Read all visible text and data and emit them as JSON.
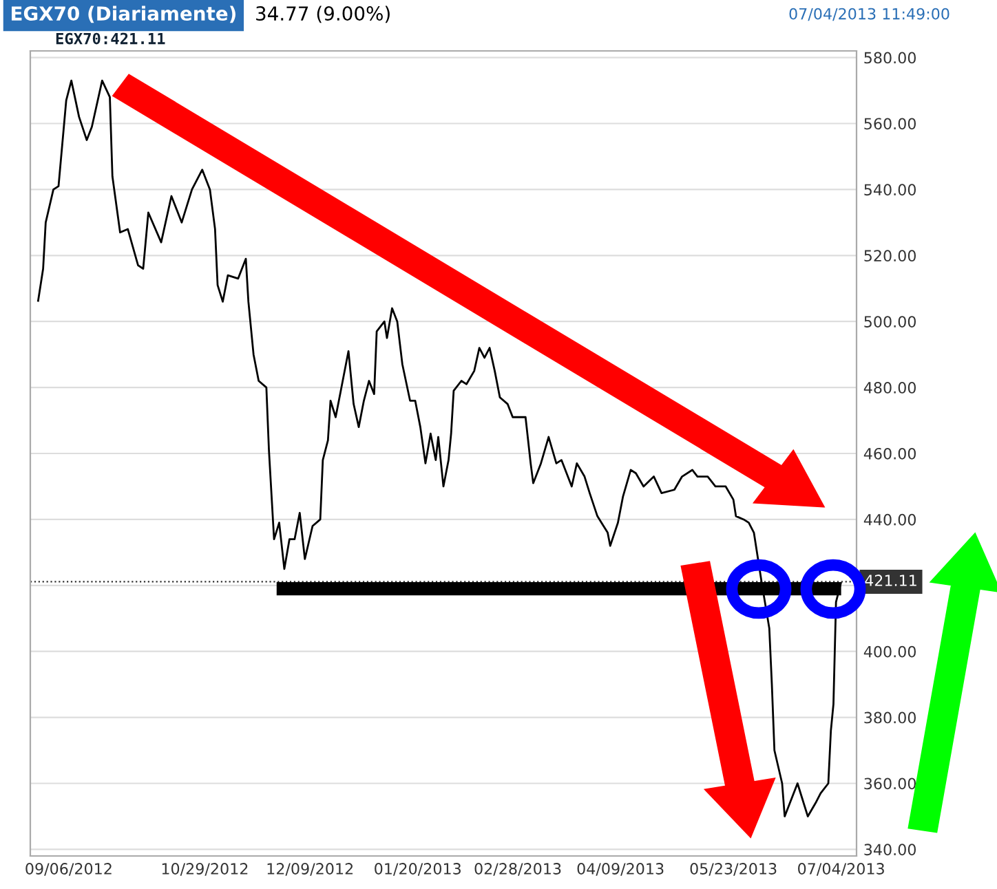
{
  "chart_data": {
    "type": "line",
    "title": "EGX70 (Diariamente)",
    "subtitle": "34.77 (9.00%)",
    "annotations": [
      "EGX70:421.11",
      "07/04/2013 11:49:00"
    ],
    "series": [
      {
        "color": "#000000",
        "x": [
          "2012-08-25",
          "2012-08-27",
          "2012-08-28",
          "2012-08-31",
          "2012-09-02",
          "2012-09-05",
          "2012-09-07",
          "2012-09-10",
          "2012-09-13",
          "2012-09-15",
          "2012-09-19",
          "2012-09-22",
          "2012-09-23",
          "2012-09-26",
          "2012-09-29",
          "2012-10-03",
          "2012-10-05",
          "2012-10-07",
          "2012-10-12",
          "2012-10-16",
          "2012-10-20",
          "2012-10-24",
          "2012-10-28",
          "2012-10-31",
          "2012-11-02",
          "2012-11-03",
          "2012-11-05",
          "2012-11-07",
          "2012-11-11",
          "2012-11-14",
          "2012-11-15",
          "2012-11-17",
          "2012-11-19",
          "2012-11-22",
          "2012-11-23",
          "2012-11-25",
          "2012-11-27",
          "2012-11-29",
          "2012-12-01",
          "2012-12-03",
          "2012-12-05",
          "2012-12-07",
          "2012-12-10",
          "2012-12-13",
          "2012-12-14",
          "2012-12-16",
          "2012-12-17",
          "2012-12-19",
          "2012-12-21",
          "2012-12-24",
          "2012-12-26",
          "2012-12-28",
          "2012-12-30",
          "2013-01-01",
          "2013-01-03",
          "2013-01-04",
          "2013-01-07",
          "2013-01-08",
          "2013-01-10",
          "2013-01-12",
          "2013-01-14",
          "2013-01-17",
          "2013-01-19",
          "2013-01-21",
          "2013-01-23",
          "2013-01-25",
          "2013-01-27",
          "2013-01-28",
          "2013-01-30",
          "2013-02-01",
          "2013-02-02",
          "2013-02-03",
          "2013-02-06",
          "2013-02-08",
          "2013-02-11",
          "2013-02-13",
          "2013-02-15",
          "2013-02-17",
          "2013-02-19",
          "2013-02-21",
          "2013-02-24",
          "2013-02-26",
          "2013-03-01",
          "2013-03-03",
          "2013-03-05",
          "2013-03-06",
          "2013-03-09",
          "2013-03-12",
          "2013-03-15",
          "2013-03-17",
          "2013-03-19",
          "2013-03-21",
          "2013-03-23",
          "2013-03-26",
          "2013-03-28",
          "2013-03-31",
          "2013-04-04",
          "2013-04-05",
          "2013-04-08",
          "2013-04-10",
          "2013-04-13",
          "2013-04-15",
          "2013-04-18",
          "2013-04-22",
          "2013-04-25",
          "2013-04-30",
          "2013-05-03",
          "2013-05-07",
          "2013-05-09",
          "2013-05-13",
          "2013-05-16",
          "2013-05-20",
          "2013-05-23",
          "2013-05-24",
          "2013-05-27",
          "2013-05-29",
          "2013-05-31",
          "2013-06-03",
          "2013-06-06",
          "2013-06-07",
          "2013-06-08",
          "2013-06-11",
          "2013-06-12",
          "2013-06-14",
          "2013-06-17",
          "2013-06-19",
          "2013-06-21",
          "2013-06-24",
          "2013-06-26",
          "2013-06-29",
          "2013-06-30",
          "2013-07-01",
          "2013-07-02",
          "2013-07-04"
        ],
        "values": [
          506,
          516,
          530,
          540,
          541,
          567,
          573,
          562,
          555,
          559,
          573,
          568,
          544,
          527,
          528,
          517,
          516,
          533,
          524,
          538,
          530,
          540,
          546,
          540,
          528,
          511,
          506,
          514,
          513,
          519,
          506,
          490,
          482,
          480,
          461,
          434,
          439,
          425,
          434,
          434,
          442,
          428,
          438,
          440,
          458,
          464,
          476,
          471,
          479,
          491,
          475,
          468,
          476,
          482,
          478,
          497,
          500,
          495,
          504,
          500,
          487,
          476,
          476,
          468,
          457,
          466,
          458,
          465,
          450,
          458,
          466,
          479,
          482,
          481,
          485,
          492,
          489,
          492,
          485,
          477,
          475,
          471,
          471,
          471,
          457,
          451,
          457,
          465,
          457,
          458,
          454,
          450,
          457,
          453,
          448,
          441,
          436,
          432,
          439,
          447,
          455,
          454,
          450,
          453,
          448,
          449,
          453,
          455,
          453,
          453,
          450,
          450,
          446,
          441,
          440,
          439,
          436,
          421,
          407,
          390,
          370,
          360,
          350,
          354,
          360,
          355,
          350,
          354,
          357,
          360,
          376,
          384,
          415,
          421
        ]
      },
      {
        "color": "#000000",
        "x": [
          "2012-11-26",
          "2013-07-04"
        ],
        "values": [
          419,
          419
        ]
      }
    ],
    "xlim": [
      "2012-08-22",
      "2013-07-10"
    ],
    "xticks": [
      {
        "value": "2012-09-06",
        "label": "09/06/2012"
      },
      {
        "value": "2012-10-29",
        "label": "10/29/2012"
      },
      {
        "value": "2012-12-09",
        "label": "12/09/2012"
      },
      {
        "value": "2013-01-20",
        "label": "01/20/2013"
      },
      {
        "value": "2013-02-28",
        "label": "02/28/2013"
      },
      {
        "value": "2013-04-09",
        "label": "04/09/2013"
      },
      {
        "value": "2013-05-23",
        "label": "05/23/2013"
      },
      {
        "value": "2013-07-04",
        "label": "07/04/2013"
      }
    ],
    "ylim": [
      338,
      582
    ],
    "yticks": [
      {
        "value": 340,
        "label": "340.00"
      },
      {
        "value": 360,
        "label": "360.00"
      },
      {
        "value": 380,
        "label": "380.00"
      },
      {
        "value": 400,
        "label": "400.00"
      },
      {
        "value": 420,
        "label": null
      },
      {
        "value": 440,
        "label": "440.00"
      },
      {
        "value": 460,
        "label": "460.00"
      },
      {
        "value": 480,
        "label": "480.00"
      },
      {
        "value": 500,
        "label": "500.00"
      },
      {
        "value": 520,
        "label": "520.00"
      },
      {
        "value": 540,
        "label": "540.00"
      },
      {
        "value": 560,
        "label": "560.00"
      },
      {
        "value": 580,
        "label": "580.00"
      }
    ],
    "ref_lines": [
      {
        "axis": "y",
        "value": 421.11,
        "label": "421.11",
        "color": "#333333",
        "line_style": "dotted"
      }
    ],
    "grid": "y",
    "line_style": "solid"
  }
}
